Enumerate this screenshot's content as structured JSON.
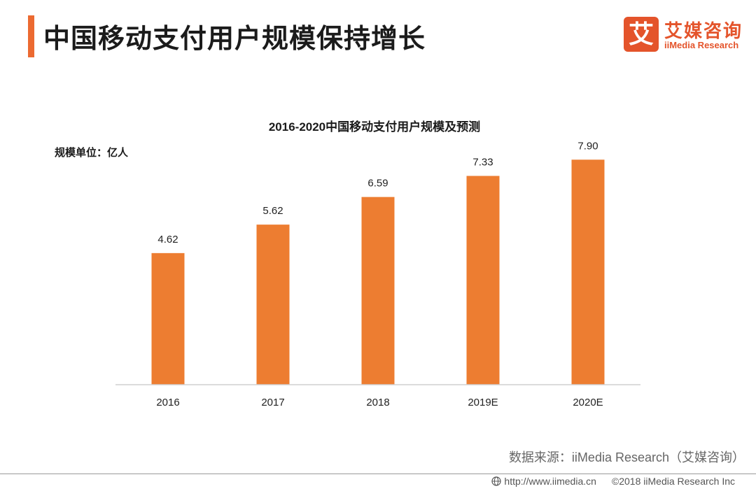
{
  "header": {
    "title": "中国移动支付用户规模保持增长",
    "accent_color": "#ec6a31"
  },
  "logo": {
    "mark": "艾",
    "name_cn": "艾媒咨询",
    "name_en": "iiMedia Research",
    "color": "#e4542b"
  },
  "chart_data": {
    "type": "bar",
    "title": "2016-2020中国移动支付用户规模及预测",
    "unit_label": "规模单位：亿人",
    "categories": [
      "2016",
      "2017",
      "2018",
      "2019E",
      "2020E"
    ],
    "values": [
      4.62,
      5.62,
      6.59,
      7.33,
      7.9
    ],
    "value_labels": [
      "4.62",
      "5.62",
      "6.59",
      "7.33",
      "7.90"
    ],
    "xlabel": "",
    "ylabel": "",
    "ylim": [
      0,
      8.3
    ],
    "grid": false,
    "bar_color": "#ed7d31"
  },
  "footer": {
    "source": "数据来源：iiMedia Research（艾媒咨询）",
    "url": "http://www.iimedia.cn",
    "copyright": "©2018  iiMedia Research  Inc"
  }
}
